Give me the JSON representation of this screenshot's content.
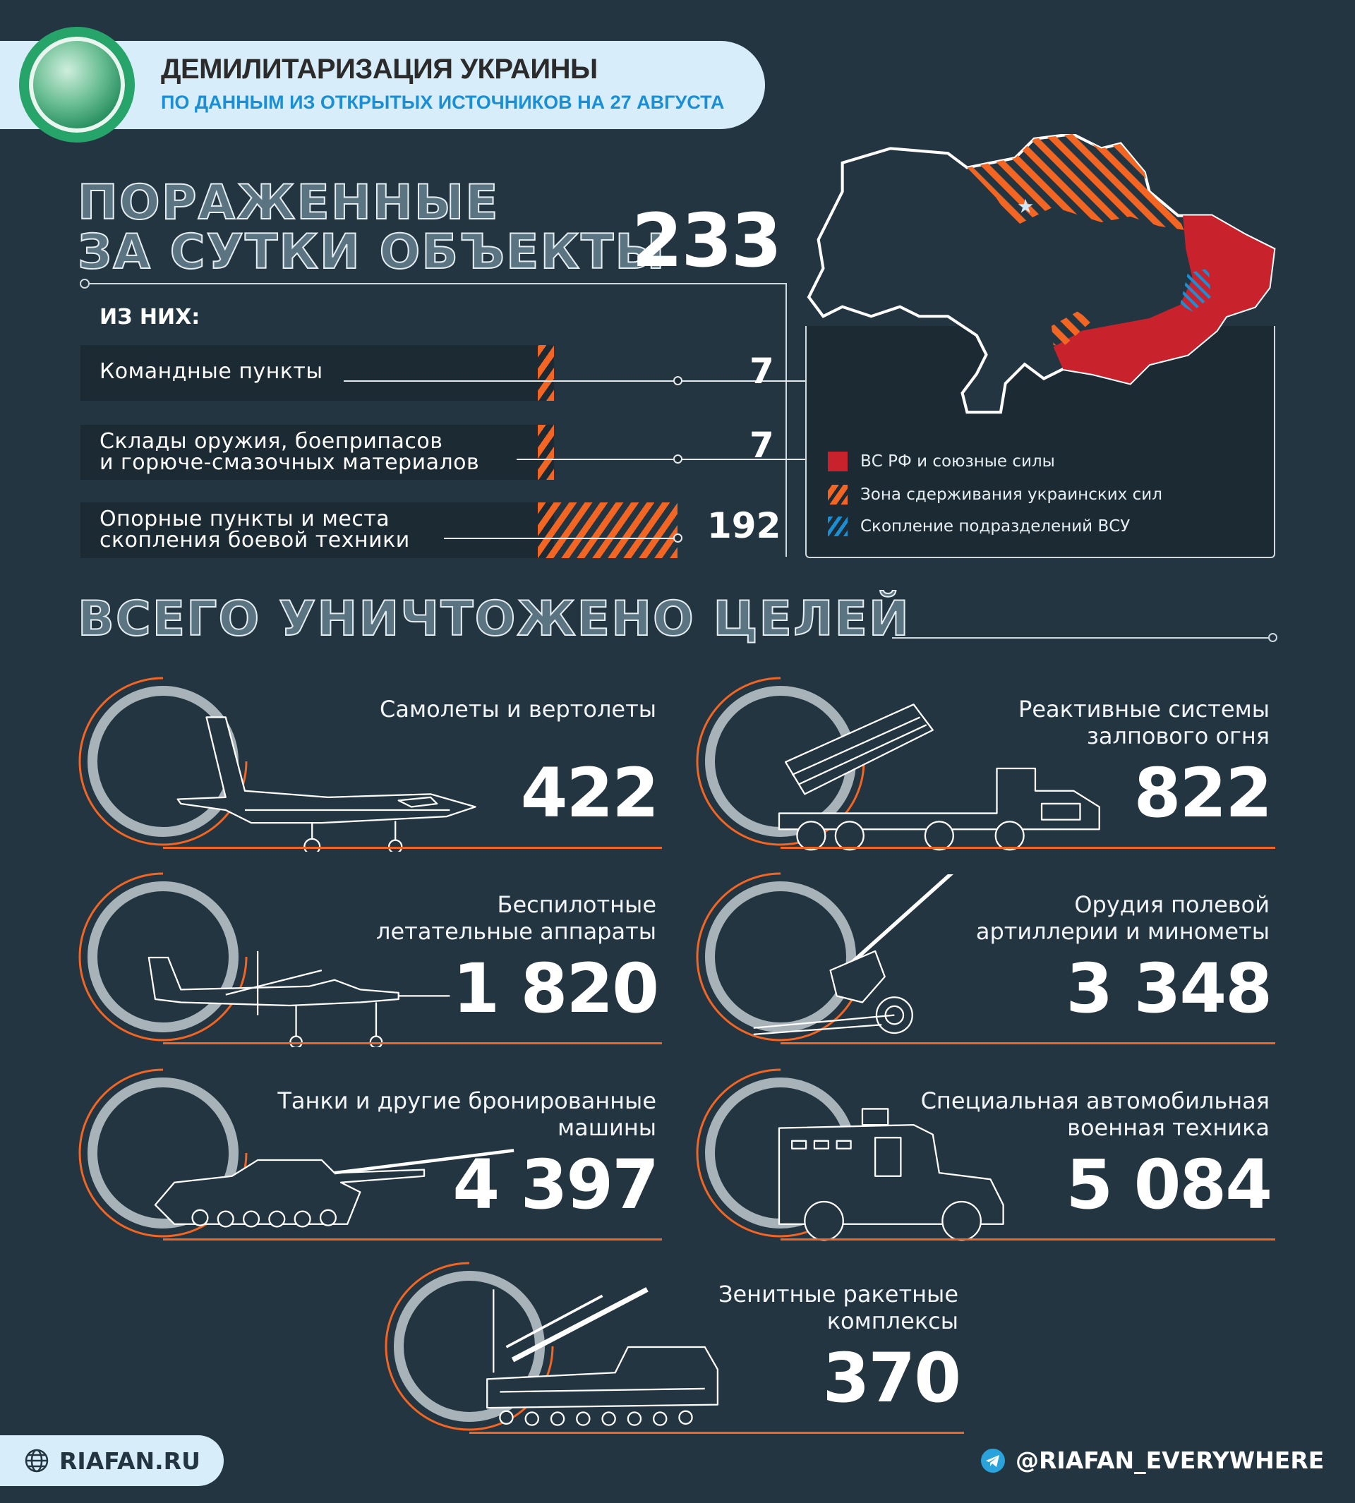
{
  "header": {
    "title": "ДЕМИЛИТАРИЗАЦИЯ УКРАИНЫ",
    "subtitle": "ПО ДАННЫМ ИЗ ОТКРЫТЫХ ИСТОЧНИКОВ НА 27 АВГУСТА"
  },
  "daily": {
    "title_line1": "ПОРАЖЕННЫЕ",
    "title_line2": "ЗА СУТКИ ОБЪЕКТЫ",
    "total": "233",
    "of_them": "ИЗ НИХ:",
    "rows": [
      {
        "label1": "Командные пункты",
        "label2": "",
        "value": "7"
      },
      {
        "label1": "Склады оружия, боеприпасов",
        "label2": "и горюче-смазочных материалов",
        "value": "7"
      },
      {
        "label1": "Опорные пункты и места",
        "label2": "скопления боевой техники",
        "value": "192"
      }
    ]
  },
  "map": {
    "legend": [
      {
        "label": "ВС РФ и союзные силы",
        "color": "#c8232c"
      },
      {
        "label": "Зона сдерживания украинских сил",
        "color": "#f26522"
      },
      {
        "label": "Скопление подразделений ВСУ",
        "color": "#1a8fd6"
      }
    ]
  },
  "total": {
    "title": "ВСЕГО УНИЧТОЖЕНО ЦЕЛЕЙ",
    "cards": [
      {
        "label1": "Самолеты и вертолеты",
        "label2": "",
        "value": "422",
        "icon": "aircraft-icon"
      },
      {
        "label1": "Реактивные системы",
        "label2": "залпового огня",
        "value": "822",
        "icon": "mlrs-icon"
      },
      {
        "label1": "Беспилотные",
        "label2": "летательные аппараты",
        "value": "1 820",
        "icon": "drone-icon"
      },
      {
        "label1": "Орудия полевой",
        "label2": "артиллерии и минометы",
        "value": "3 348",
        "icon": "howitzer-icon"
      },
      {
        "label1": "Танки и другие бронированные",
        "label2": "машины",
        "value": "4 397",
        "icon": "tank-icon"
      },
      {
        "label1": "Специальная автомобильная",
        "label2": "военная техника",
        "value": "5 084",
        "icon": "armored-truck-icon"
      },
      {
        "label1": "Зенитные ракетные",
        "label2": "комплексы",
        "value": "370",
        "icon": "sam-launcher-icon"
      }
    ]
  },
  "footer": {
    "site": "RIAFAN.RU",
    "telegram": "@RIAFAN_EVERYWHERE"
  },
  "colors": {
    "background": "#233541",
    "accent": "#f26522",
    "russia": "#c8232c",
    "ukraine_cluster": "#1a8fd6"
  }
}
